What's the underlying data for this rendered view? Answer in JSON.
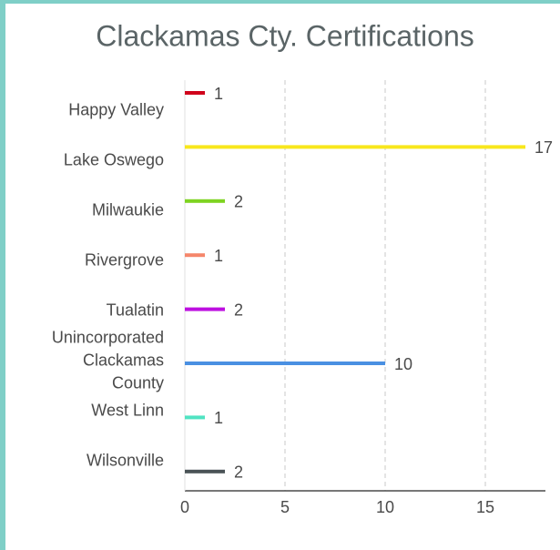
{
  "chart_data": {
    "type": "barh",
    "title": "Clackamas Cty. Certifications",
    "categories": [
      "Happy Valley",
      "Lake Oswego",
      "Milwaukie",
      "Rivergrove",
      "Tualatin",
      "Unincorporated Clackamas County",
      "West Linn",
      "Wilsonville"
    ],
    "values": [
      1,
      17,
      2,
      1,
      2,
      10,
      1,
      2
    ],
    "colors": [
      "#d0021b",
      "#f8e71c",
      "#7ed321",
      "#f5866b",
      "#bd10e0",
      "#4a90e2",
      "#50e3c2",
      "#4a5356"
    ],
    "xlim": [
      0,
      18
    ],
    "xticks": [
      0,
      5,
      10,
      15
    ],
    "grid": true
  }
}
